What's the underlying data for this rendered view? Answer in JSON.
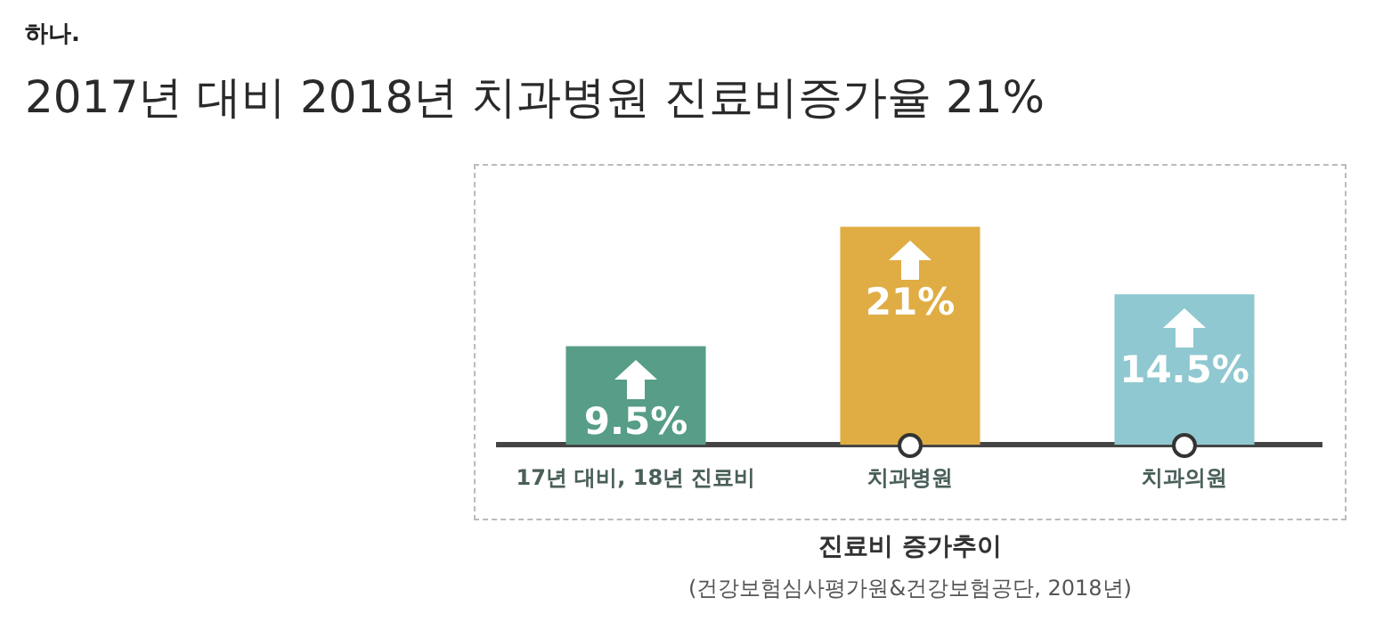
{
  "chart_data": {
    "type": "bar",
    "title": "2017년 대비 2018년 치과병원 진료비증가율 21%",
    "annotations": [
      "하나.",
      "진료비 증가추이",
      "(건강보험심사평가원&건강보험공단, 2018년)"
    ],
    "categories": [
      "17년 대비, 18년 진료비",
      "치과병원",
      "치과의원"
    ],
    "values": [
      9.5,
      21,
      14.5
    ],
    "colors": [
      "#579d87",
      "#e0ad44",
      "#8fc8d0"
    ],
    "value_labels": [
      "9.5%",
      "21%",
      "14.5%"
    ],
    "grid": false,
    "legend": false
  }
}
